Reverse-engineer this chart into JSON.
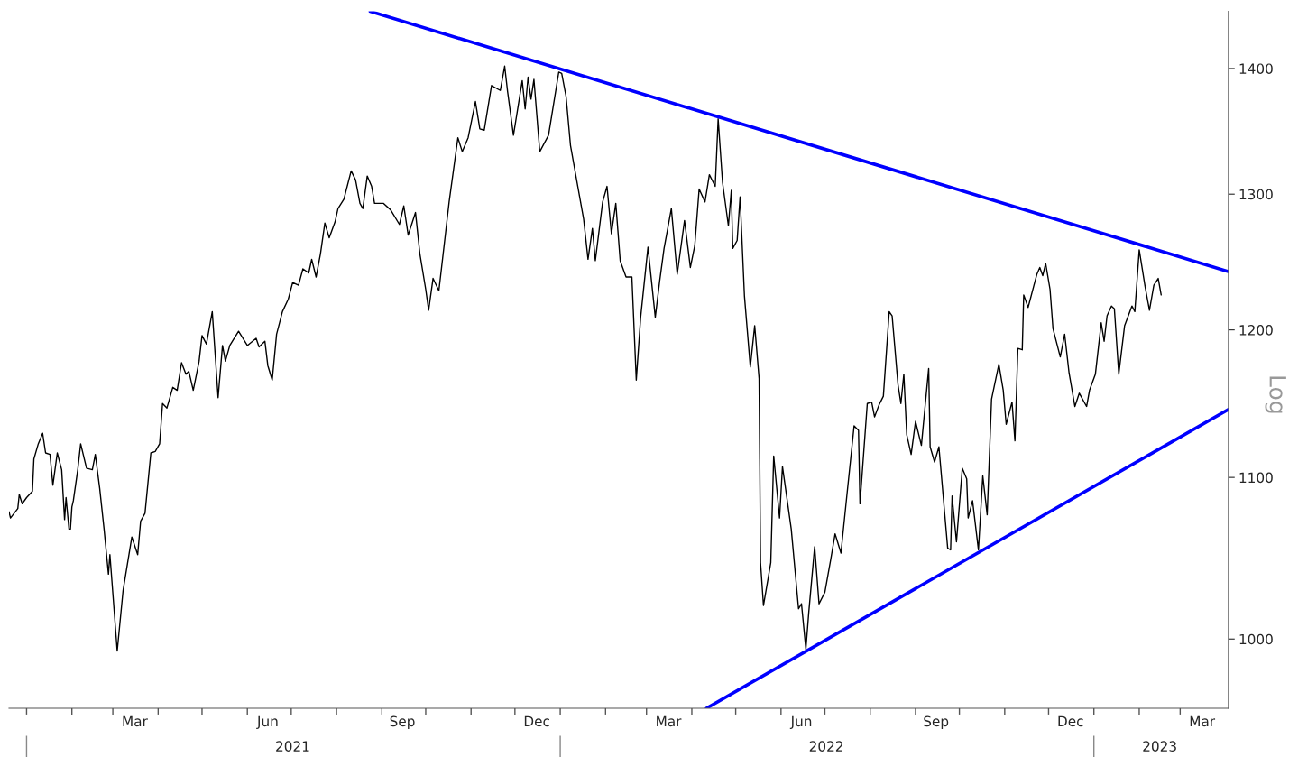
{
  "chart_data": {
    "type": "line",
    "ylabel": "Log",
    "log": true,
    "grid": false,
    "legend": false,
    "ylim": [
      960,
      1448
    ],
    "yticks": [
      1000,
      1100,
      1200,
      1300,
      1400
    ],
    "xlim": [
      "2020-12-20",
      "2023-04-03"
    ],
    "xticks": [
      {
        "value": "2021-03-16",
        "label": "Mar"
      },
      {
        "value": "2021-06-15",
        "label": "Jun"
      },
      {
        "value": "2021-09-15",
        "label": "Sep"
      },
      {
        "value": "2021-12-16",
        "label": "Dec"
      },
      {
        "value": "2022-03-16",
        "label": "Mar"
      },
      {
        "value": "2022-06-15",
        "label": "Jun"
      },
      {
        "value": "2022-09-15",
        "label": "Sep"
      },
      {
        "value": "2022-12-16",
        "label": "Dec"
      },
      {
        "value": "2023-03-16",
        "label": "Mar"
      },
      {
        "value": "2021-01-01",
        "label": null
      },
      {
        "value": "2021-02-01",
        "label": null
      },
      {
        "value": "2021-03-01",
        "label": null
      },
      {
        "value": "2021-04-01",
        "label": null
      },
      {
        "value": "2021-05-01",
        "label": null
      },
      {
        "value": "2021-06-01",
        "label": null
      },
      {
        "value": "2021-07-01",
        "label": null
      },
      {
        "value": "2021-08-01",
        "label": null
      },
      {
        "value": "2021-09-01",
        "label": null
      },
      {
        "value": "2021-10-01",
        "label": null
      },
      {
        "value": "2021-11-01",
        "label": null
      },
      {
        "value": "2021-12-01",
        "label": null
      },
      {
        "value": "2022-01-01",
        "label": null
      },
      {
        "value": "2022-02-01",
        "label": null
      },
      {
        "value": "2022-03-01",
        "label": null
      },
      {
        "value": "2022-04-01",
        "label": null
      },
      {
        "value": "2022-05-01",
        "label": null
      },
      {
        "value": "2022-06-01",
        "label": null
      },
      {
        "value": "2022-07-01",
        "label": null
      },
      {
        "value": "2022-08-01",
        "label": null
      },
      {
        "value": "2022-09-01",
        "label": null
      },
      {
        "value": "2022-10-01",
        "label": null
      },
      {
        "value": "2022-11-01",
        "label": null
      },
      {
        "value": "2022-12-01",
        "label": null
      },
      {
        "value": "2023-01-01",
        "label": null
      },
      {
        "value": "2023-02-01",
        "label": null
      },
      {
        "value": "2023-03-01",
        "label": null
      }
    ],
    "x2lim": [
      "2020-12-20",
      "2023-04-03"
    ],
    "x2ticks": [
      {
        "value": "2021-01-01",
        "label": null
      },
      {
        "value": "2021-07-02",
        "label": "2021"
      },
      {
        "value": "2022-01-01",
        "label": null
      },
      {
        "value": "2022-07-02",
        "label": "2022"
      },
      {
        "value": "2023-01-01",
        "label": null
      },
      {
        "value": "2023-02-15",
        "label": "2023"
      }
    ],
    "series": [
      {
        "color": "#000000",
        "x": [
          "2020-12-20",
          "2020-12-21",
          "2020-12-26",
          "2020-12-27",
          "2020-12-29",
          "2021-01-01",
          "2021-01-05",
          "2021-01-06",
          "2021-01-09",
          "2021-01-12",
          "2021-01-14",
          "2021-01-17",
          "2021-01-19",
          "2021-01-22",
          "2021-01-25",
          "2021-01-27",
          "2021-01-28",
          "2021-01-30",
          "2021-01-31",
          "2021-02-01",
          "2021-02-02",
          "2021-02-05",
          "2021-02-07",
          "2021-02-11",
          "2021-02-15",
          "2021-02-17",
          "2021-02-20",
          "2021-02-23",
          "2021-02-26",
          "2021-02-27",
          "2021-03-04",
          "2021-03-08",
          "2021-03-14",
          "2021-03-18",
          "2021-03-20",
          "2021-03-23",
          "2021-03-27",
          "2021-03-30",
          "2021-04-02",
          "2021-04-04",
          "2021-04-07",
          "2021-04-11",
          "2021-04-14",
          "2021-04-17",
          "2021-04-20",
          "2021-04-22",
          "2021-04-25",
          "2021-04-29",
          "2021-05-01",
          "2021-05-04",
          "2021-05-08",
          "2021-05-12",
          "2021-05-15",
          "2021-05-17",
          "2021-05-20",
          "2021-05-26",
          "2021-06-01",
          "2021-06-07",
          "2021-06-09",
          "2021-06-13",
          "2021-06-15",
          "2021-06-18",
          "2021-06-21",
          "2021-06-25",
          "2021-06-29",
          "2021-07-02",
          "2021-07-06",
          "2021-07-09",
          "2021-07-13",
          "2021-07-15",
          "2021-07-18",
          "2021-07-21",
          "2021-07-24",
          "2021-07-27",
          "2021-07-31",
          "2021-08-02",
          "2021-08-06",
          "2021-08-11",
          "2021-08-14",
          "2021-08-17",
          "2021-08-19",
          "2021-08-22",
          "2021-08-25",
          "2021-08-27",
          "2021-09-02",
          "2021-09-07",
          "2021-09-13",
          "2021-09-16",
          "2021-09-19",
          "2021-09-24",
          "2021-09-27",
          "2021-10-01",
          "2021-10-03",
          "2021-10-06",
          "2021-10-10",
          "2021-10-17",
          "2021-10-23",
          "2021-10-26",
          "2021-10-30",
          "2021-11-04",
          "2021-11-07",
          "2021-11-10",
          "2021-11-15",
          "2021-11-21",
          "2021-11-24",
          "2021-11-26",
          "2021-11-30",
          "2021-12-06",
          "2021-12-08",
          "2021-12-10",
          "2021-12-12",
          "2021-12-14",
          "2021-12-18",
          "2021-12-24",
          "2021-12-31",
          "2022-01-02",
          "2022-01-05",
          "2022-01-08",
          "2022-01-13",
          "2022-01-17",
          "2022-01-20",
          "2022-01-23",
          "2022-01-25",
          "2022-01-30",
          "2022-02-02",
          "2022-02-05",
          "2022-02-08",
          "2022-02-11",
          "2022-02-15",
          "2022-02-19",
          "2022-02-22",
          "2022-02-25",
          "2022-03-02",
          "2022-03-07",
          "2022-03-10",
          "2022-03-13",
          "2022-03-18",
          "2022-03-22",
          "2022-03-27",
          "2022-03-31",
          "2022-04-03",
          "2022-04-06",
          "2022-04-10",
          "2022-04-13",
          "2022-04-17",
          "2022-04-19",
          "2022-04-22",
          "2022-04-26",
          "2022-04-28",
          "2022-04-29",
          "2022-05-02",
          "2022-05-04",
          "2022-05-07",
          "2022-05-11",
          "2022-05-14",
          "2022-05-17",
          "2022-05-18",
          "2022-05-20",
          "2022-05-25",
          "2022-05-27",
          "2022-05-31",
          "2022-06-02",
          "2022-06-08",
          "2022-06-13",
          "2022-06-15",
          "2022-06-18",
          "2022-06-20",
          "2022-06-24",
          "2022-06-27",
          "2022-07-01",
          "2022-07-05",
          "2022-07-08",
          "2022-07-12",
          "2022-07-16",
          "2022-07-21",
          "2022-07-24",
          "2022-07-25",
          "2022-07-30",
          "2022-08-02",
          "2022-08-04",
          "2022-08-07",
          "2022-08-10",
          "2022-08-14",
          "2022-08-16",
          "2022-08-20",
          "2022-08-22",
          "2022-08-24",
          "2022-08-26",
          "2022-08-29",
          "2022-09-01",
          "2022-09-05",
          "2022-09-10",
          "2022-09-11",
          "2022-09-14",
          "2022-09-17",
          "2022-09-23",
          "2022-09-25",
          "2022-09-26",
          "2022-09-29",
          "2022-10-03",
          "2022-10-06",
          "2022-10-07",
          "2022-10-10",
          "2022-10-14",
          "2022-10-17",
          "2022-10-20",
          "2022-10-23",
          "2022-10-28",
          "2022-10-31",
          "2022-11-02",
          "2022-11-06",
          "2022-11-08",
          "2022-11-10",
          "2022-11-13",
          "2022-11-14",
          "2022-11-17",
          "2022-11-21",
          "2022-11-23",
          "2022-11-25",
          "2022-11-27",
          "2022-11-29",
          "2022-12-02",
          "2022-12-04",
          "2022-12-09",
          "2022-12-12",
          "2022-12-15",
          "2022-12-19",
          "2022-12-22",
          "2022-12-27",
          "2022-12-29",
          "2023-01-02",
          "2023-01-06",
          "2023-01-08",
          "2023-01-10",
          "2023-01-13",
          "2023-01-15",
          "2023-01-18",
          "2023-01-22",
          "2023-01-27",
          "2023-01-29",
          "2023-02-01",
          "2023-02-05",
          "2023-02-08",
          "2023-02-11",
          "2023-02-14",
          "2023-02-16"
        ],
        "values": [
          1078,
          1074,
          1080,
          1089,
          1083,
          1087,
          1091,
          1112,
          1122,
          1129,
          1116,
          1115,
          1095,
          1116,
          1105,
          1073,
          1087,
          1067,
          1067,
          1081,
          1085,
          1105,
          1122,
          1106,
          1105,
          1115,
          1093,
          1067,
          1039,
          1051,
          993,
          1029,
          1062,
          1051,
          1072,
          1077,
          1116,
          1117,
          1122,
          1149,
          1146,
          1160,
          1158,
          1177,
          1169,
          1171,
          1158,
          1178,
          1196,
          1190,
          1213,
          1153,
          1189,
          1178,
          1189,
          1199,
          1189,
          1194,
          1188,
          1192,
          1175,
          1165,
          1197,
          1213,
          1222,
          1234,
          1232,
          1244,
          1241,
          1251,
          1238,
          1255,
          1278,
          1267,
          1279,
          1289,
          1296,
          1318,
          1311,
          1293,
          1289,
          1314,
          1306,
          1293,
          1293,
          1288,
          1277,
          1291,
          1269,
          1286,
          1255,
          1229,
          1214,
          1237,
          1228,
          1294,
          1344,
          1333,
          1344,
          1373,
          1351,
          1350,
          1386,
          1382,
          1402,
          1381,
          1346,
          1390,
          1367,
          1393,
          1375,
          1391,
          1333,
          1346,
          1397,
          1396,
          1377,
          1338,
          1306,
          1281,
          1251,
          1274,
          1250,
          1294,
          1306,
          1270,
          1293,
          1250,
          1238,
          1238,
          1165,
          1209,
          1260,
          1209,
          1235,
          1259,
          1289,
          1240,
          1280,
          1245,
          1261,
          1304,
          1294,
          1315,
          1306,
          1359,
          1309,
          1276,
          1303,
          1259,
          1265,
          1298,
          1224,
          1174,
          1203,
          1166,
          1046,
          1020,
          1046,
          1114,
          1074,
          1107,
          1067,
          1018,
          1021,
          994,
          1016,
          1056,
          1021,
          1028,
          1048,
          1064,
          1052,
          1088,
          1134,
          1131,
          1083,
          1149,
          1150,
          1140,
          1148,
          1154,
          1213,
          1210,
          1162,
          1149,
          1169,
          1128,
          1115,
          1137,
          1121,
          1173,
          1120,
          1110,
          1120,
          1055,
          1054,
          1088,
          1059,
          1106,
          1099,
          1074,
          1085,
          1054,
          1101,
          1076,
          1152,
          1176,
          1158,
          1135,
          1150,
          1124,
          1187,
          1186,
          1225,
          1216,
          1232,
          1240,
          1245,
          1239,
          1248,
          1229,
          1201,
          1181,
          1197,
          1170,
          1147,
          1156,
          1147,
          1158,
          1169,
          1205,
          1192,
          1210,
          1217,
          1215,
          1169,
          1203,
          1217,
          1213,
          1258,
          1231,
          1214,
          1232,
          1237,
          1225
        ]
      },
      {
        "color": "#0000ff",
        "x": [
          "2021-08-24",
          "2023-04-03"
        ],
        "values": [
          1448,
          1242
        ]
      },
      {
        "color": "#0000ff",
        "x": [
          "2022-04-11",
          "2023-04-03"
        ],
        "values": [
          960,
          1145
        ]
      }
    ]
  }
}
